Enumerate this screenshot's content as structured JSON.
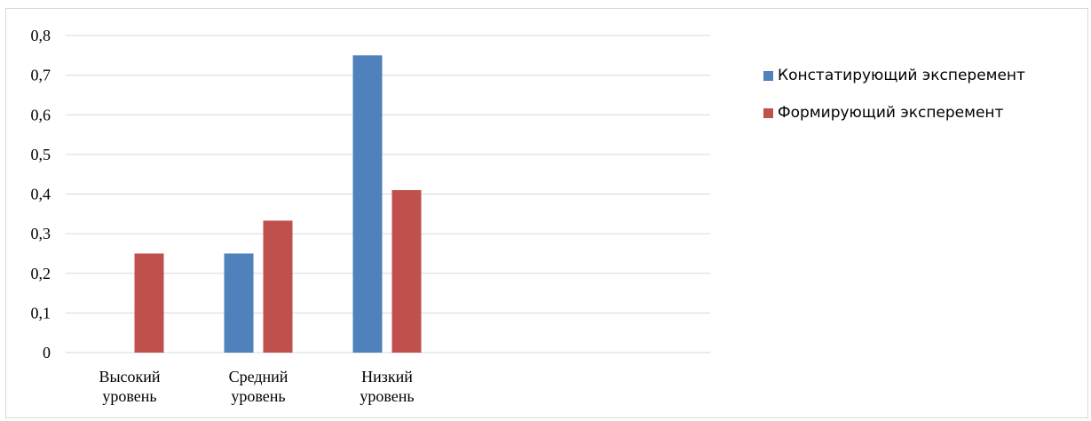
{
  "chart_data": {
    "type": "bar",
    "categories": [
      [
        "Высокий",
        "уровень"
      ],
      [
        "Средний",
        "уровень"
      ],
      [
        "Низкий",
        "уровень"
      ]
    ],
    "series": [
      {
        "name": "Констатирующий эксперемент",
        "color": "#4f81bd",
        "values": [
          0,
          0.25,
          0.75
        ]
      },
      {
        "name": "Формирующий эксперемент",
        "color": "#c0504d",
        "values": [
          0.25,
          0.333,
          0.41
        ]
      }
    ],
    "ylim": [
      0,
      0.8
    ],
    "yticks": [
      "0",
      "0,1",
      "0,2",
      "0,3",
      "0,4",
      "0,5",
      "0,6",
      "0,7",
      "0,8"
    ],
    "grid": true,
    "legend": "right"
  }
}
